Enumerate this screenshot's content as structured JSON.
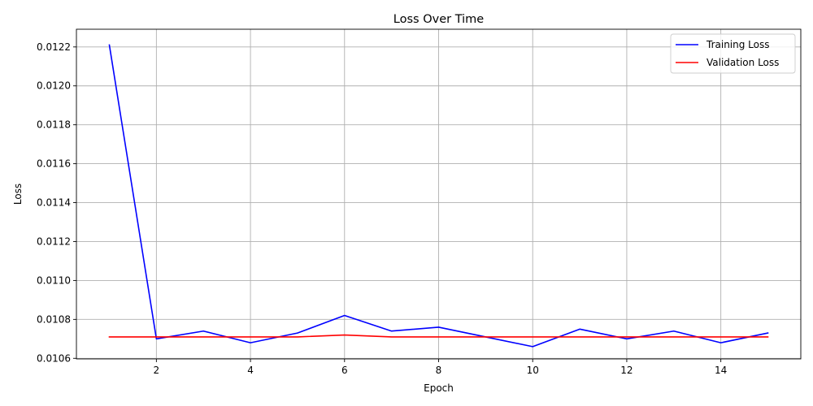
{
  "chart_data": {
    "type": "line",
    "title": "Loss Over Time",
    "xlabel": "Epoch",
    "ylabel": "Loss",
    "xlim": [
      0.3,
      15.7
    ],
    "ylim": [
      0.010597,
      0.012291
    ],
    "x_ticks": [
      2,
      4,
      6,
      8,
      10,
      12,
      14
    ],
    "x_tick_labels": [
      "2",
      "4",
      "6",
      "8",
      "10",
      "12",
      "14"
    ],
    "y_ticks": [
      0.0106,
      0.0108,
      0.011,
      0.0112,
      0.0114,
      0.0116,
      0.0118,
      0.012,
      0.0122
    ],
    "y_tick_labels": [
      "0.0106",
      "0.0108",
      "0.0110",
      "0.0112",
      "0.0114",
      "0.0116",
      "0.0118",
      "0.0120",
      "0.0122"
    ],
    "grid": true,
    "legend_position": "top-right",
    "x": [
      1,
      2,
      3,
      4,
      5,
      6,
      7,
      8,
      9,
      10,
      11,
      12,
      13,
      14,
      15
    ],
    "series": [
      {
        "name": "Training Loss",
        "color": "#0000ff",
        "values": [
          0.01221,
          0.0107,
          0.01074,
          0.01068,
          0.01073,
          0.01082,
          0.01074,
          0.01076,
          0.01071,
          0.01066,
          0.01075,
          0.0107,
          0.01074,
          0.01068,
          0.01073
        ]
      },
      {
        "name": "Validation Loss",
        "color": "#ff0000",
        "values": [
          0.01071,
          0.01071,
          0.01071,
          0.01071,
          0.01071,
          0.01072,
          0.01071,
          0.01071,
          0.01071,
          0.01071,
          0.01071,
          0.01071,
          0.01071,
          0.01071,
          0.01071
        ]
      }
    ]
  }
}
